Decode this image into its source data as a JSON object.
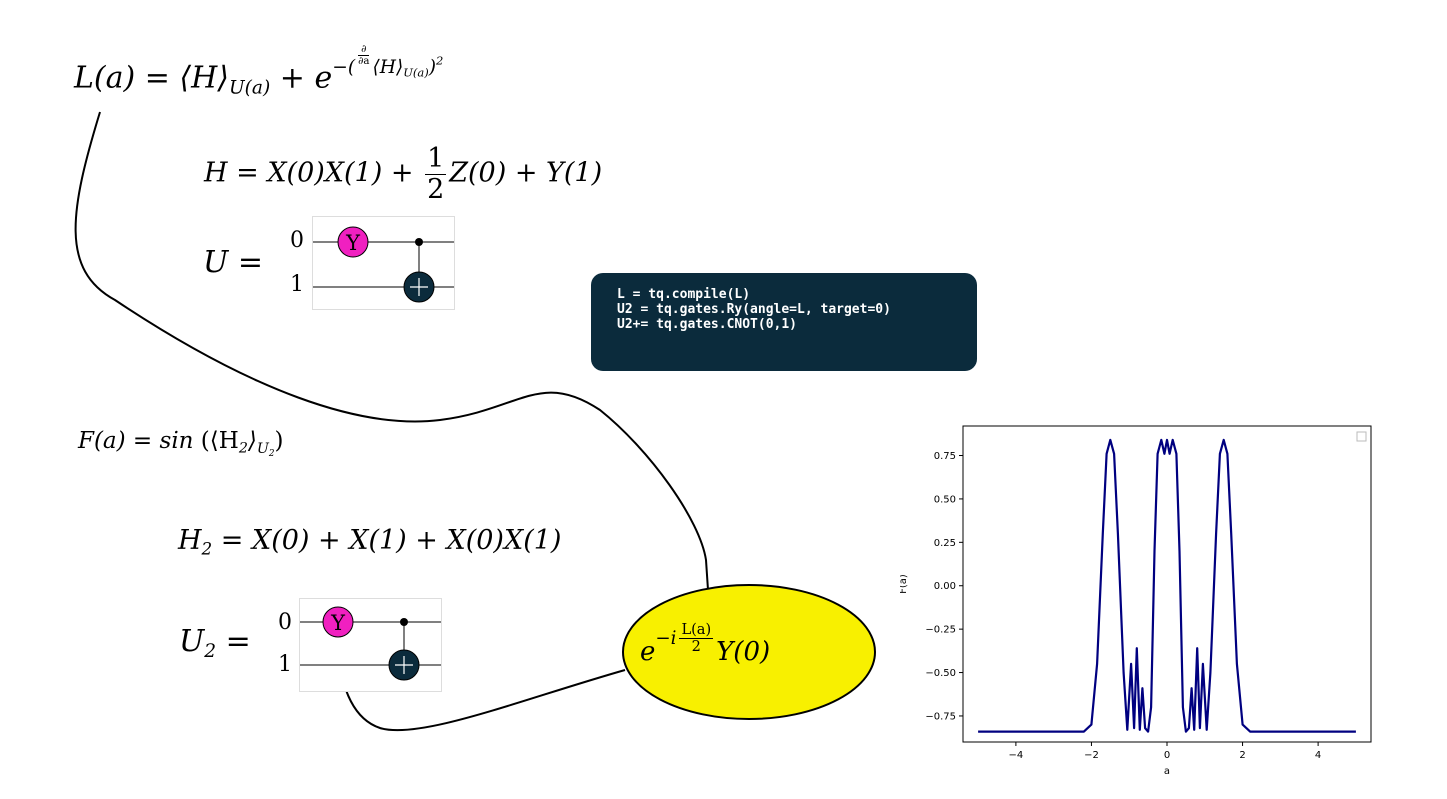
{
  "equations": {
    "L": {
      "lhs": "L(a) = ⟨H⟩",
      "sub": "U(a)",
      "plus": " + e",
      "exp_open": "−(",
      "exp_bracket": "⟨H⟩",
      "exp_sub": "U(a)",
      "exp_close": ")",
      "exp_power": "2",
      "d_num": "∂",
      "d_den": "∂a"
    },
    "H": {
      "part1": "H = X(0)X(1) + ",
      "frac_num": "1",
      "frac_den": "2",
      "part2": "Z(0) + Y(1)"
    },
    "U": {
      "lhs": "U ="
    },
    "F": {
      "lhs": "F(a) = sin",
      "inner": " (⟨H",
      "inner_sub": "2",
      "inner_close": "⟩",
      "sub": "U",
      "sub_sub": "2",
      "close": ")"
    },
    "H2": {
      "lhs": "H",
      "lhs_sub": "2",
      "rhs": " = X(0) + X(1) + X(0)X(1)"
    },
    "U2": {
      "lhs": "U",
      "lhs_sub": "2",
      "eq": " ="
    }
  },
  "circuit_U": {
    "qubits": [
      "0",
      "1"
    ],
    "gate_label": "Y",
    "gate_color": "#f020c0",
    "target_color": "#0b2b3c"
  },
  "circuit_U2": {
    "qubits": [
      "0",
      "1"
    ],
    "gate_label": "Y",
    "gate_color": "#f020c0",
    "target_color": "#0b2b3c"
  },
  "code": {
    "lines": [
      "L = tq.compile(L)",
      "U2 = tq.gates.Ry(angle=L, target=0)",
      "U2+= tq.gates.CNOT(0,1)"
    ],
    "background": "#0b2b3c"
  },
  "ellipse": {
    "base": "e",
    "exp_pre": "−i",
    "frac_num": "L(a)",
    "frac_den": "2",
    "post": "Y(0)",
    "fill": "#f8f000"
  },
  "chart_data": {
    "type": "line",
    "xlabel": "a",
    "ylabel": "F(a)",
    "xlim": [
      -5.4,
      5.4
    ],
    "ylim": [
      -0.9,
      0.92
    ],
    "xticks": [
      -4,
      -2,
      0,
      2,
      4
    ],
    "yticks": [
      -0.75,
      -0.5,
      -0.25,
      0.0,
      0.25,
      0.5,
      0.75
    ],
    "ytick_labels": [
      "−0.75",
      "−0.50",
      "−0.25",
      "0.00",
      "0.25",
      "0.50",
      "0.75"
    ],
    "xtick_labels": [
      "−4",
      "−2",
      "0",
      "2",
      "4"
    ],
    "line_color": "#000080",
    "legend": "top-right (empty)",
    "series": [
      {
        "x": [
          -5.0,
          -2.2,
          -2.0,
          -1.85,
          -1.7,
          -1.6,
          -1.5,
          -1.4,
          -1.3,
          -1.15,
          -1.05,
          -0.95,
          -0.87,
          -0.8,
          -0.72,
          -0.65,
          -0.58,
          -0.5,
          -0.42,
          -0.33,
          -0.25,
          -0.15,
          -0.07,
          0.0,
          0.07,
          0.15,
          0.25,
          0.33,
          0.42,
          0.5,
          0.58,
          0.65,
          0.72,
          0.8,
          0.87,
          0.95,
          1.05,
          1.15,
          1.3,
          1.4,
          1.5,
          1.6,
          1.7,
          1.85,
          2.0,
          2.2,
          5.0
        ],
        "y": [
          -0.84,
          -0.84,
          -0.8,
          -0.45,
          0.3,
          0.76,
          0.84,
          0.76,
          0.3,
          -0.5,
          -0.83,
          -0.45,
          -0.82,
          -0.36,
          -0.83,
          -0.59,
          -0.82,
          -0.84,
          -0.7,
          0.2,
          0.76,
          0.84,
          0.76,
          0.84,
          0.76,
          0.84,
          0.76,
          0.2,
          -0.7,
          -0.84,
          -0.82,
          -0.59,
          -0.83,
          -0.36,
          -0.82,
          -0.45,
          -0.83,
          -0.5,
          0.3,
          0.76,
          0.84,
          0.76,
          0.3,
          -0.45,
          -0.8,
          -0.84,
          -0.84
        ]
      }
    ]
  }
}
